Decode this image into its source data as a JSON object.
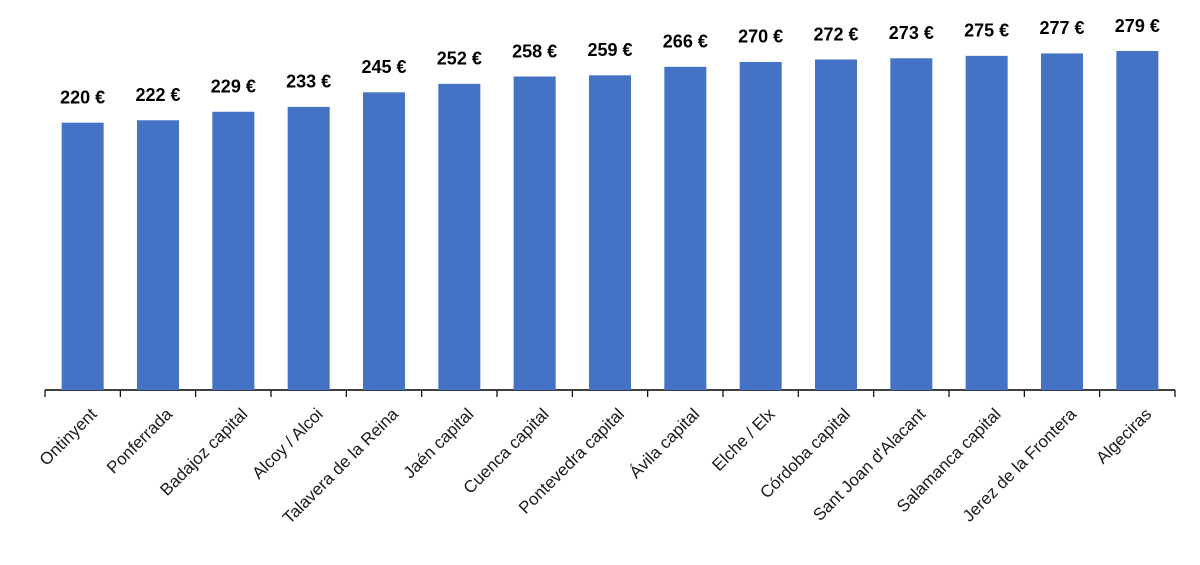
{
  "chart_data": {
    "type": "bar",
    "categories": [
      "Ontinyent",
      "Ponferrada",
      "Badajoz capital",
      "Alcoy / Alcoi",
      "Talavera de la Reina",
      "Jaén capital",
      "Cuenca capital",
      "Pontevedra capital",
      "Ávila capital",
      "Elche / Elx",
      "Córdoba capital",
      "Sant Joan d'Alacant",
      "Salamanca capital",
      "Jerez de la Frontera",
      "Algeciras"
    ],
    "values": [
      220,
      222,
      229,
      233,
      245,
      252,
      258,
      259,
      266,
      270,
      272,
      273,
      275,
      277,
      279
    ],
    "value_labels": [
      "220 €",
      "222 €",
      "229 €",
      "233 €",
      "245 €",
      "252 €",
      "258 €",
      "259 €",
      "266 €",
      "270 €",
      "272 €",
      "273 €",
      "275 €",
      "277 €",
      "279 €"
    ],
    "color": "#4472c4"
  }
}
